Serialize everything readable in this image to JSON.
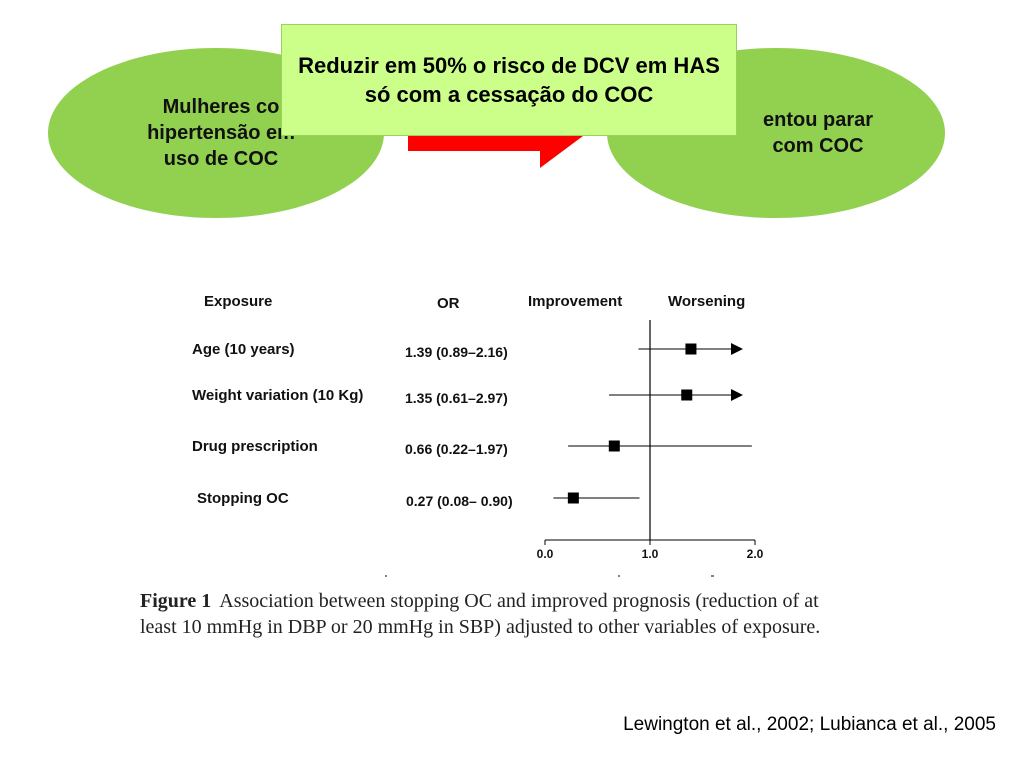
{
  "left_oval": {
    "text": "Mulheres co\nhipertensão em\nuso de COC",
    "color": "#92d050"
  },
  "right_oval": {
    "text": "entou parar\ncom COC",
    "color": "#92d050"
  },
  "callout": {
    "text": "Reduzir em 50% o risco de DCV em HAS só com a cessação do COC",
    "color": "#ccff8a"
  },
  "arrow_color": "#ff0000",
  "chart_data": {
    "type": "forest",
    "headers": {
      "exposure": "Exposure",
      "or": "OR",
      "improvement": "Improvement",
      "worsening": "Worsening"
    },
    "rows": [
      {
        "label": "Age (10 years)",
        "or_text": "1.39 (0.89–2.16)",
        "or": 1.39,
        "lo": 0.89,
        "hi": 2.16,
        "arrow": true
      },
      {
        "label": "Weight variation (10 Kg)",
        "or_text": "1.35 (0.61–2.97)",
        "or": 1.35,
        "lo": 0.61,
        "hi": 2.97,
        "arrow": true
      },
      {
        "label": "Drug prescription",
        "or_text": "0.66 (0.22–1.97)",
        "or": 0.66,
        "lo": 0.22,
        "hi": 1.97,
        "arrow": false
      },
      {
        "label": "Stopping OC",
        "or_text": "0.27 (0.08– 0.90)",
        "or": 0.27,
        "lo": 0.08,
        "hi": 0.9,
        "arrow": false
      }
    ],
    "x_ticks": [
      "0.0",
      "1.0",
      "2.0"
    ],
    "xlim": [
      0,
      2
    ],
    "reference_line": 1.0
  },
  "caption": {
    "label": "Figure 1",
    "text": "Association between stopping OC and improved prognosis (reduction of at least 10 mmHg in DBP or 20 mmHg in SBP) adjusted to other variables of exposure."
  },
  "reference": "Lewington et al., 2002; Lubianca et al., 2005"
}
